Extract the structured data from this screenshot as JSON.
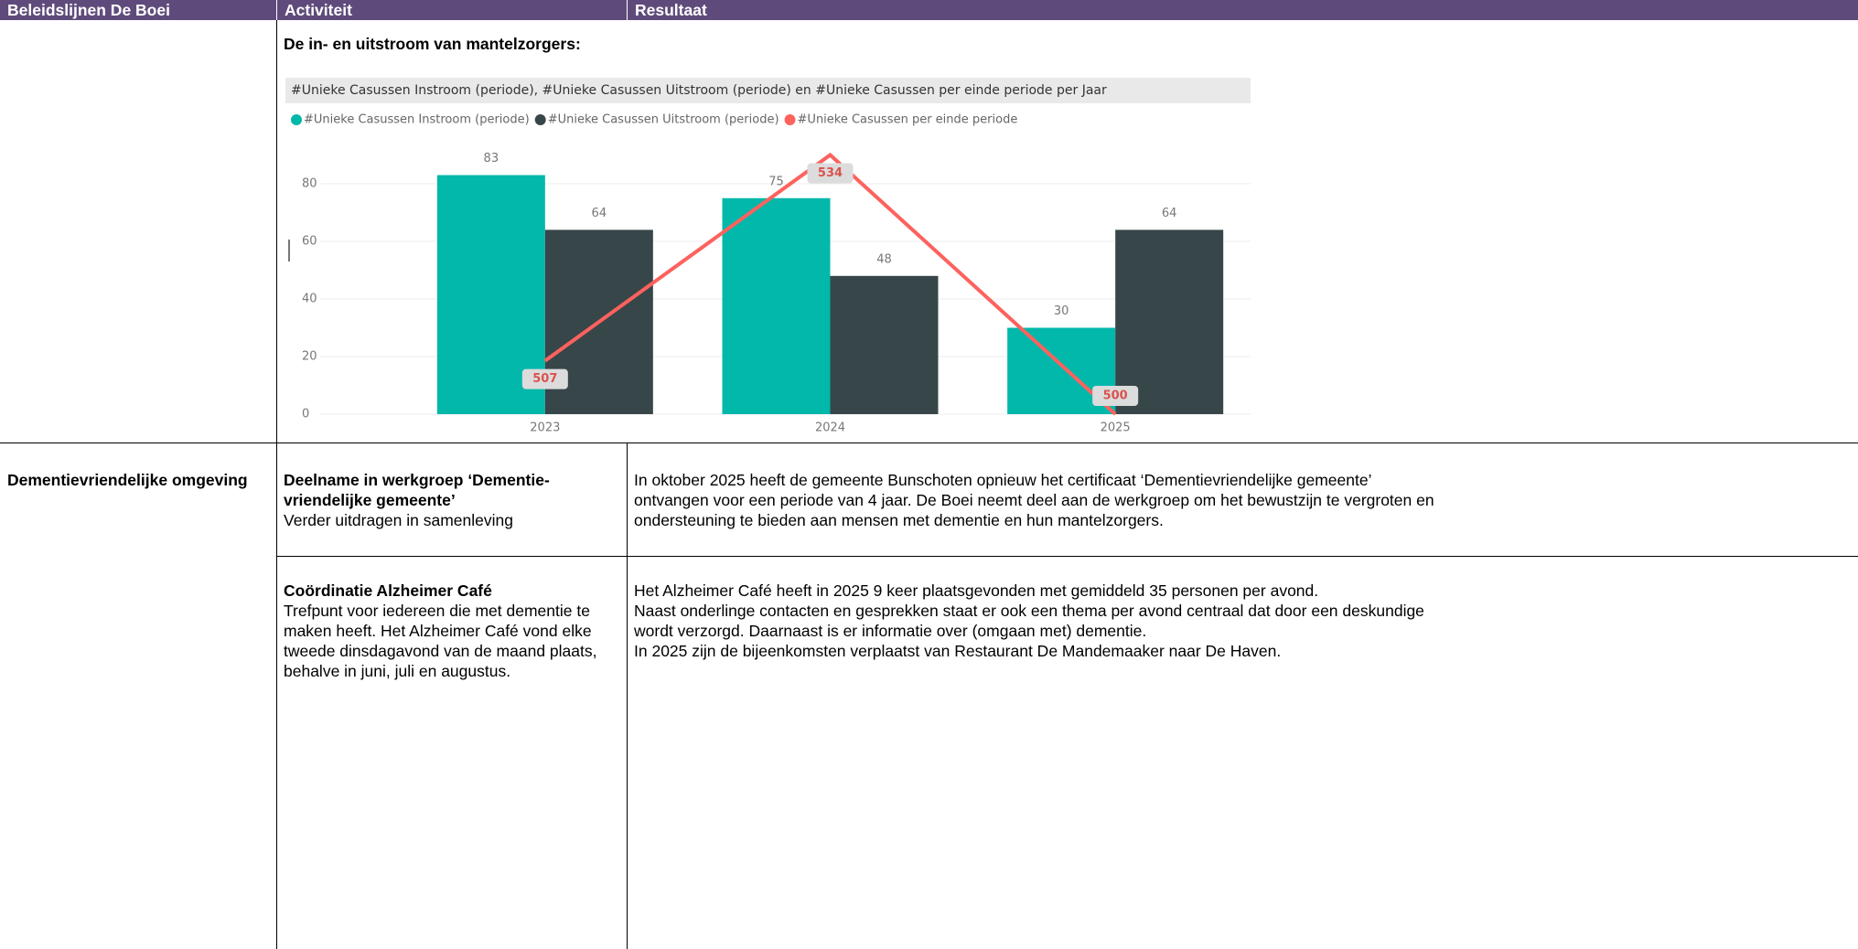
{
  "table": {
    "header": [
      "Beleidslijnen De Boei",
      "Activiteit",
      "Resultaat"
    ],
    "rows": [
      {
        "heading": "De in- en uitstroom van mantelzorgers:"
      },
      {
        "beleidslijn": "Dementievriendelijke omgeving",
        "activiteit_title": "Deelname in werkgroep ‘Dementie-vriendelijke gemeente’",
        "activiteit_text": "Verder uitdragen in samenleving",
        "resultaat": [
          "In oktober 2025 heeft de gemeente Bunschoten opnieuw het certificaat ‘Dementievriendelijke gemeente’ ontvangen voor een periode van 4 jaar. De Boei neemt deel aan de werkgroep om het bewustzijn te vergroten en ondersteuning te bieden aan mensen met dementie en hun mantelzorgers."
        ]
      },
      {
        "activiteit_title": "Coördinatie Alzheimer Café",
        "activiteit_text": "Trefpunt voor iedereen die met dementie te maken heeft. Het Alzheimer Café vond elke tweede dinsdagavond van de maand plaats, behalve in juni, juli en augustus.",
        "resultaat": [
          "Het Alzheimer Café heeft in 2025 9 keer plaatsgevonden met gemiddeld 35 personen per avond.",
          "Naast onderlinge contacten en gesprekken staat er ook een thema per avond centraal dat door een deskundige wordt verzorgd. Daarnaast is er informatie over (omgaan met) dementie.",
          "In 2025 zijn de bijeenkomsten verplaatst van Restaurant De Mandemaaker naar De Haven."
        ]
      }
    ]
  },
  "chart_data": {
    "type": "bar",
    "title": "#Unieke Casussen Instroom (periode), #Unieke Casussen Uitstroom (periode) en #Unieke Casussen per einde periode per Jaar",
    "categories": [
      "2023",
      "2024",
      "2025"
    ],
    "series": [
      {
        "name": "#Unieke Casussen Instroom (periode)",
        "color": "#01b8aa",
        "values": [
          83,
          75,
          30
        ]
      },
      {
        "name": "#Unieke Casussen Uitstroom (periode)",
        "color": "#374649",
        "values": [
          64,
          48,
          64
        ]
      },
      {
        "name": "#Unieke Casussen per einde periode",
        "color": "#fd625e",
        "type": "line",
        "axis": "y2",
        "values": [
          507,
          534,
          500
        ]
      }
    ],
    "ylim": [
      0,
      90
    ],
    "yticks": [
      0,
      20,
      40,
      60,
      80
    ],
    "y2lim": [
      500,
      534
    ],
    "grid": true,
    "legend": "top-left"
  }
}
